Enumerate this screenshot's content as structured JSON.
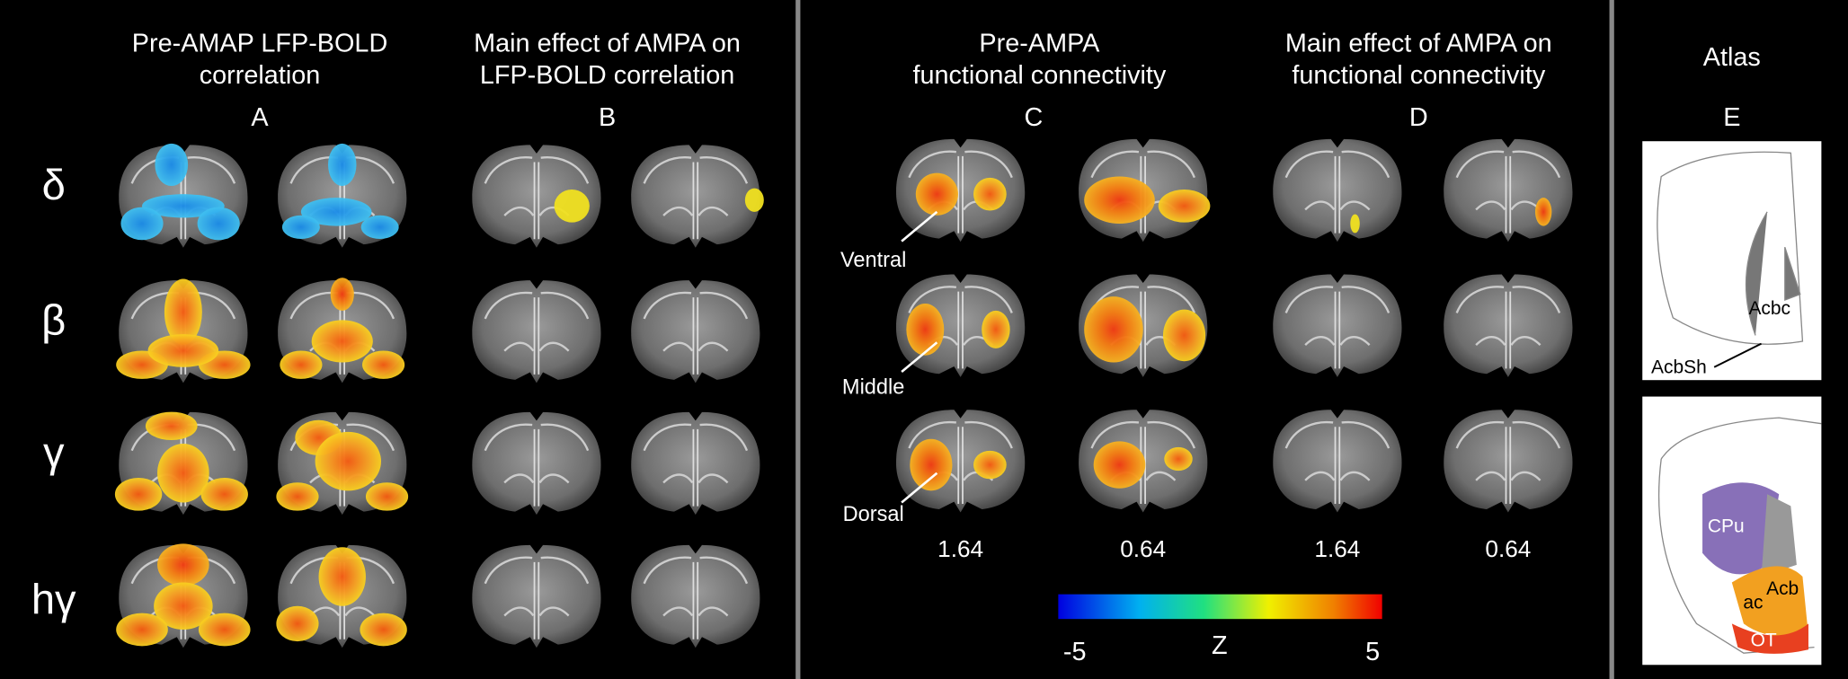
{
  "panels": [
    {
      "title": [
        "Pre-AMAP LFP-BOLD",
        "correlation"
      ],
      "letter": "A"
    },
    {
      "title": [
        "Main effect of AMPA on",
        "LFP-BOLD correlation"
      ],
      "letter": "B"
    },
    {
      "title": [
        "Pre-AMPA",
        "functional connectivity"
      ],
      "letter": "C"
    },
    {
      "title": [
        "Main effect of AMPA on",
        "functional connectivity"
      ],
      "letter": "D"
    },
    {
      "title": [
        "Atlas"
      ],
      "letter": "E"
    }
  ],
  "bands": [
    "δ",
    "β",
    "γ",
    "hγ"
  ],
  "seeds": [
    "Ventral",
    "Middle",
    "Dorsal"
  ],
  "slices": [
    1.64,
    0.64,
    1.64,
    0.64
  ],
  "colorbar": {
    "min": -5,
    "label": "Z",
    "max": 5
  },
  "atlas": {
    "top": [
      "Acbc",
      "AcbSh"
    ],
    "bottom": [
      "CPu",
      "ac",
      "Acb",
      "OT"
    ]
  }
}
